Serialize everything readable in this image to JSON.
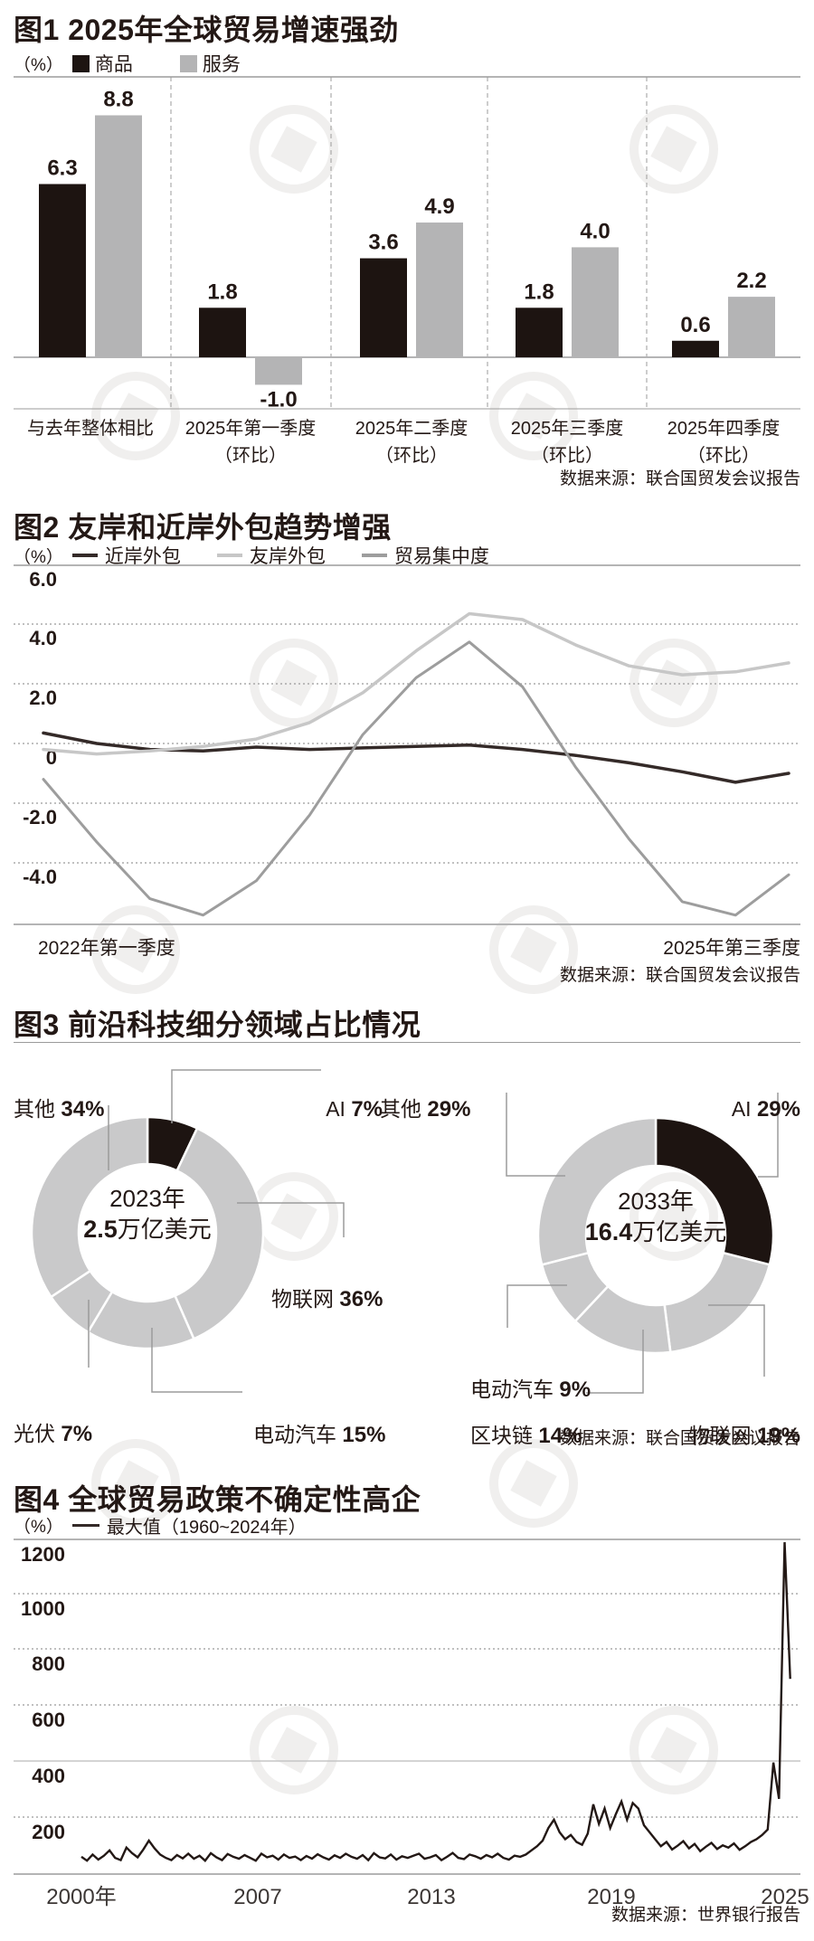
{
  "charts": [
    {
      "id": "chart1",
      "title": "图1 2025年全球贸易增速强劲",
      "unit_label": "（%）",
      "legend": [
        {
          "label": "商品",
          "color": "#1d1411"
        },
        {
          "label": "服务",
          "color": "#b4b4b5"
        }
      ],
      "source": "数据来源：联合国贸发会议报告",
      "chart_data": {
        "type": "bar",
        "categories": [
          {
            "line1": "与去年整体相比",
            "line2": ""
          },
          {
            "line1": "2025年第一季度",
            "line2": "（环比）"
          },
          {
            "line1": "2025年二季度",
            "line2": "（环比）"
          },
          {
            "line1": "2025年三季度",
            "line2": "（环比）"
          },
          {
            "line1": "2025年四季度",
            "line2": "（环比）"
          }
        ],
        "series": [
          {
            "name": "商品",
            "color": "#1d1411",
            "values": [
              6.3,
              1.8,
              3.6,
              1.8,
              0.6
            ]
          },
          {
            "name": "服务",
            "color": "#b4b4b5",
            "values": [
              8.8,
              -1.0,
              4.9,
              4.0,
              2.2
            ]
          }
        ],
        "ylabel": "%",
        "ylim": [
          -1.5,
          9.5
        ],
        "grid": "dashed vertical group separators"
      }
    },
    {
      "id": "chart2",
      "title": "图2 友岸和近岸外包趋势增强",
      "unit_label": "（%）",
      "legend": [
        {
          "label": "近岸外包",
          "color": "#342a28"
        },
        {
          "label": "友岸外包",
          "color": "#c7c7c7"
        },
        {
          "label": "贸易集中度",
          "color": "#9d9d9d"
        }
      ],
      "source": "数据来源：联合国贸发会议报告",
      "chart_data": {
        "type": "line",
        "x_labels": [
          "2022年第一季度",
          "2025年第三季度"
        ],
        "yticks": [
          "6.0",
          "4.0",
          "2.0",
          "0",
          "-2.0",
          "-4.0"
        ],
        "ylim": [
          -6.0,
          6.0
        ],
        "series": [
          {
            "name": "近岸外包",
            "color": "#342a28",
            "width": 3.5,
            "values": [
              0.35,
              0.0,
              -0.2,
              -0.25,
              -0.12,
              -0.2,
              -0.15,
              -0.1,
              -0.05,
              -0.2,
              -0.4,
              -0.65,
              -0.95,
              -1.3,
              -1.0
            ]
          },
          {
            "name": "友岸外包",
            "color": "#c7c7c7",
            "width": 3.5,
            "values": [
              -0.2,
              -0.35,
              -0.25,
              -0.1,
              0.15,
              0.7,
              1.7,
              3.1,
              4.35,
              4.15,
              3.3,
              2.6,
              2.3,
              2.4,
              2.7
            ]
          },
          {
            "name": "贸易集中度",
            "color": "#9d9d9d",
            "width": 3,
            "values": [
              -1.2,
              -3.3,
              -5.2,
              -5.75,
              -4.6,
              -2.4,
              0.3,
              2.2,
              3.4,
              1.9,
              -0.8,
              -3.2,
              -5.3,
              -5.75,
              -4.4
            ]
          }
        ]
      }
    },
    {
      "id": "chart3",
      "title": "图3 前沿科技细分领域占比情况",
      "source": "数据来源：联合国贸发会议报告",
      "chart_data": [
        {
          "type": "pie",
          "center_year": "2023年",
          "center_value": "2.5",
          "center_unit": "万亿美元",
          "slices": [
            {
              "label": "AI",
              "pct": "7%",
              "value": 7,
              "color": "#1d1411"
            },
            {
              "label": "物联网",
              "pct": "36%",
              "value": 36,
              "color": "#c9c9ca"
            },
            {
              "label": "电动汽车",
              "pct": "15%",
              "value": 15,
              "color": "#c9c9ca"
            },
            {
              "label": "光伏",
              "pct": "7%",
              "value": 7,
              "color": "#c9c9ca"
            },
            {
              "label": "其他",
              "pct": "34%",
              "value": 34,
              "color": "#c9c9ca"
            }
          ]
        },
        {
          "type": "pie",
          "center_year": "2033年",
          "center_value": "16.4",
          "center_unit": "万亿美元",
          "slices": [
            {
              "label": "AI",
              "pct": "29%",
              "value": 29,
              "color": "#1d1411"
            },
            {
              "label": "物联网",
              "pct": "19%",
              "value": 19,
              "color": "#c9c9ca"
            },
            {
              "label": "区块链",
              "pct": "14%",
              "value": 14,
              "color": "#c9c9ca"
            },
            {
              "label": "电动汽车",
              "pct": "9%",
              "value": 9,
              "color": "#c9c9ca"
            },
            {
              "label": "其他",
              "pct": "29%",
              "value": 29,
              "color": "#c9c9ca"
            }
          ]
        }
      ]
    },
    {
      "id": "chart4",
      "title": "图4 全球贸易政策不确定性高企",
      "unit_label": "（%）",
      "legend": [
        {
          "label": "最大值（1960~2024年）",
          "color": "#342a28"
        }
      ],
      "source": "数据来源：世界银行报告",
      "chart_data": {
        "type": "line",
        "x_ticks": [
          "2000年",
          "2007",
          "2013",
          "2019",
          "2025"
        ],
        "yticks": [
          "1200",
          "1000",
          "800",
          "600",
          "400",
          "200"
        ],
        "ylim": [
          0,
          1200
        ],
        "x_start_year": 2000,
        "x_step_years": 0.2,
        "series": [
          {
            "name": "最大值（1960~2024年）",
            "color": "#231815",
            "values": [
              62,
              48,
              70,
              52,
              66,
              85,
              58,
              50,
              95,
              75,
              60,
              88,
              120,
              92,
              70,
              58,
              50,
              68,
              56,
              73,
              55,
              66,
              48,
              75,
              60,
              50,
              72,
              62,
              55,
              68,
              58,
              48,
              73,
              60,
              66,
              52,
              70,
              58,
              63,
              50,
              65,
              55,
              71,
              60,
              52,
              67,
              58,
              73,
              62,
              55,
              68,
              50,
              75,
              60,
              56,
              70,
              52,
              64,
              58,
              66,
              73,
              55,
              60,
              68,
              50,
              62,
              76,
              58,
              54,
              70,
              64,
              55,
              68,
              60,
              73,
              58,
              52,
              66,
              62,
              70,
              85,
              100,
              120,
              165,
              195,
              150,
              125,
              140,
              115,
              105,
              145,
              250,
              180,
              235,
              165,
              215,
              260,
              195,
              255,
              235,
              175,
              150,
              125,
              100,
              115,
              88,
              102,
              118,
              92,
              108,
              82,
              98,
              112,
              90,
              103,
              95,
              110,
              87,
              100,
              115,
              125,
              140,
              160,
              400,
              270,
              1190,
              700
            ]
          }
        ]
      }
    }
  ]
}
